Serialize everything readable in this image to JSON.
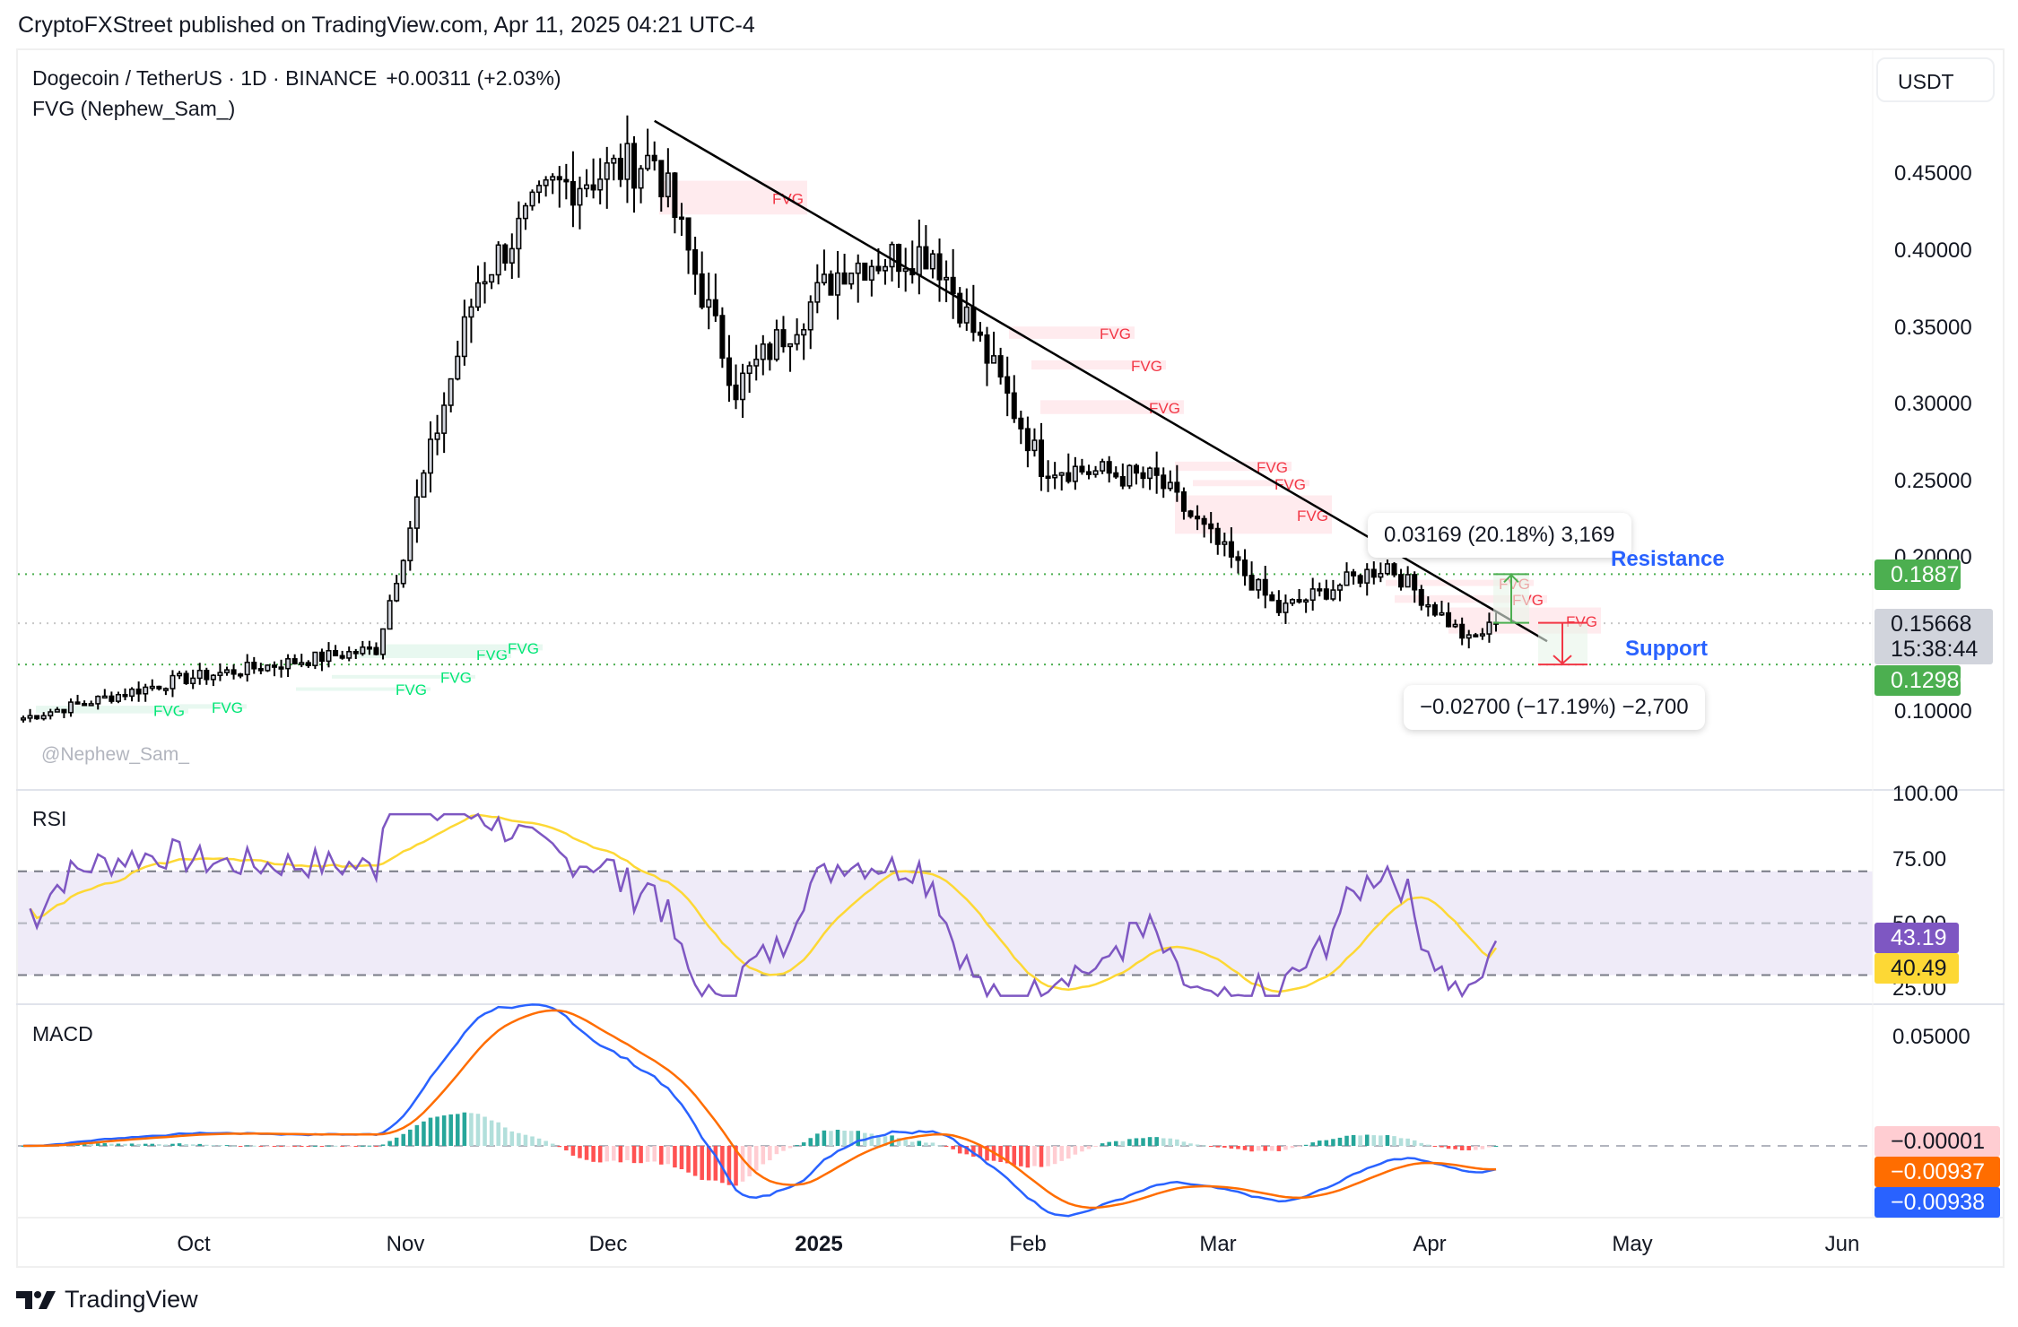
{
  "publisher": "CryptoFXStreet published on TradingView.com, Apr 11, 2025 04:21 UTC-4",
  "legend": {
    "symbol": "Dogecoin / TetherUS · 1D · BINANCE",
    "change": "+0.00311 (+2.03%)",
    "indicator": "FVG (Nephew_Sam_)"
  },
  "currency_button": "USDT",
  "watermark": "@Nephew_Sam_",
  "branding": "TradingView",
  "price_axis": {
    "ticks": [
      "0.45000",
      "0.40000",
      "0.35000",
      "0.30000",
      "0.25000",
      "0.20000",
      "0.10000"
    ],
    "tags": {
      "resistance": {
        "value": "0.18871",
        "color": "#4caf50"
      },
      "last": {
        "value": "0.15668",
        "countdown": "15:38:44",
        "color": "#d1d4dc"
      },
      "support": {
        "value": "0.12986",
        "color": "#4caf50"
      }
    }
  },
  "annotations": {
    "resistance_label": "Resistance",
    "support_label": "Support",
    "up_measure": "0.03169 (20.18%) 3,169",
    "down_measure": "−0.02700 (−17.19%) −2,700",
    "fvg_label": "FVG"
  },
  "rsi": {
    "title": "RSI",
    "ticks": [
      "100.00",
      "75.00",
      "50.00",
      "25.00"
    ],
    "value": "43.19",
    "ma_value": "40.49",
    "value_color": "#7e57c2",
    "ma_color": "#fdd835"
  },
  "macd": {
    "title": "MACD",
    "ticks": [
      "0.05000"
    ],
    "histogram": "−0.00001",
    "signal": "−0.00937",
    "macd": "−0.00938",
    "histogram_color": "#ffcdd2",
    "signal_color": "#ff6d00",
    "macd_color": "#2962ff"
  },
  "time_axis": [
    "Oct",
    "Nov",
    "Dec",
    "2025",
    "Feb",
    "Mar",
    "Apr",
    "May",
    "Jun"
  ],
  "chart_data": {
    "type": "candlestick",
    "title": "Dogecoin / TetherUS · 1D · BINANCE",
    "xlabel": "",
    "ylabel": "USDT",
    "ylim": [
      0.08,
      0.49
    ],
    "x_range": [
      "2024-09-06",
      "2025-06-01"
    ],
    "last_price": 0.15668,
    "change": 0.00311,
    "change_pct": 2.03,
    "horizontal_levels": [
      {
        "name": "Resistance",
        "value": 0.18871
      },
      {
        "name": "Support",
        "value": 0.12986
      },
      {
        "name": "Last",
        "value": 0.15668
      }
    ],
    "trendline": {
      "from": {
        "date": "2024-12-08",
        "price": 0.484
      },
      "to": {
        "date": "2025-04-16",
        "price": 0.145
      }
    },
    "measures": [
      {
        "from": 0.157,
        "to": 0.18871,
        "delta": 0.03169,
        "pct": 20.18,
        "ticks": 3169
      },
      {
        "from": 0.157,
        "to": 0.12986,
        "delta": -0.027,
        "pct": -17.19,
        "ticks": -2700
      }
    ],
    "monthly_closes_approx": {
      "Sep": 0.118,
      "Oct": 0.166,
      "Nov": 0.413,
      "Dec": 0.315,
      "Jan": 0.33,
      "Feb": 0.198,
      "Mar": 0.167,
      "Apr-11": 0.157
    },
    "key_points": [
      {
        "date": "2024-09-06",
        "close": 0.095
      },
      {
        "date": "2024-09-29",
        "close": 0.12
      },
      {
        "date": "2024-10-28",
        "close": 0.14
      },
      {
        "date": "2024-11-12",
        "close": 0.38
      },
      {
        "date": "2024-11-23",
        "close": 0.44
      },
      {
        "date": "2024-12-08",
        "high": 0.484,
        "close": 0.46
      },
      {
        "date": "2024-12-20",
        "close": 0.31,
        "low": 0.265
      },
      {
        "date": "2025-01-05",
        "close": 0.39
      },
      {
        "date": "2025-01-18",
        "high": 0.434,
        "close": 0.4
      },
      {
        "date": "2025-02-03",
        "close": 0.26,
        "low": 0.205
      },
      {
        "date": "2025-02-20",
        "close": 0.25
      },
      {
        "date": "2025-03-10",
        "close": 0.165
      },
      {
        "date": "2025-03-26",
        "high": 0.205,
        "close": 0.195
      },
      {
        "date": "2025-04-07",
        "low": 0.129,
        "close": 0.145
      },
      {
        "date": "2025-04-11",
        "close": 0.15668
      }
    ],
    "rsi": {
      "ylim": [
        0,
        100
      ],
      "bands": [
        30,
        50,
        70
      ],
      "last": 43.19,
      "ma_last": 40.49
    },
    "macd_series": {
      "macd_last": -0.00938,
      "signal_last": -0.00937,
      "hist_last": -1e-05,
      "peak_macd": 0.058
    }
  }
}
